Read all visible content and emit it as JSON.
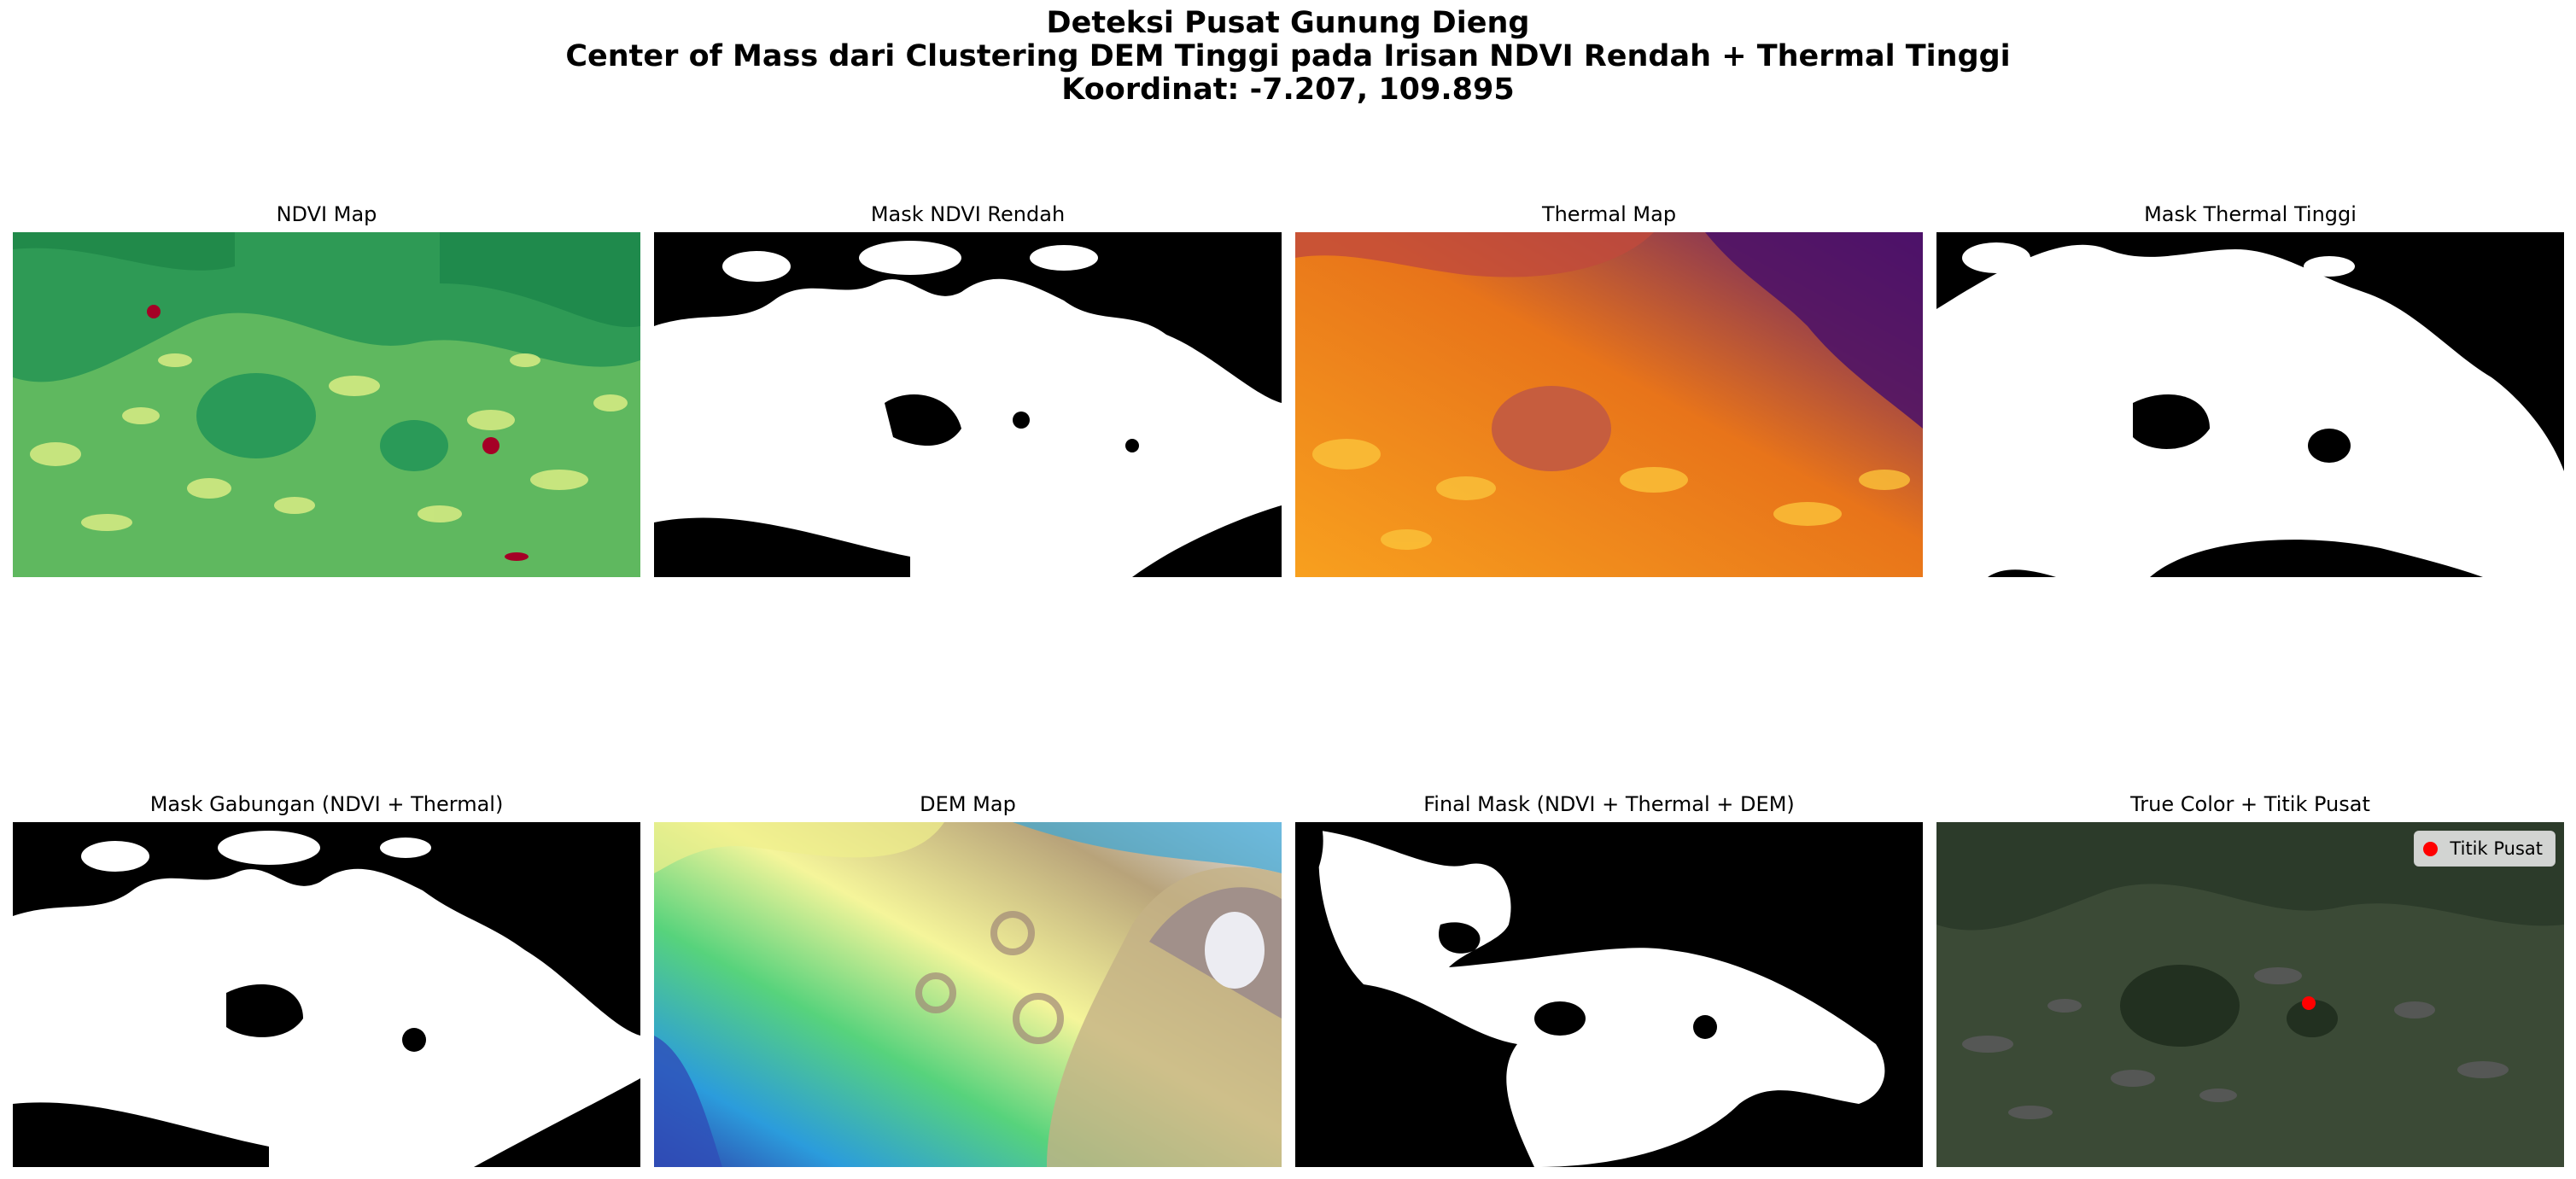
{
  "figure": {
    "title_lines": [
      "Deteksi Pusat Gunung Dieng",
      "Center of Mass dari Clustering DEM Tinggi pada Irisan NDVI Rendah + Thermal Tinggi",
      "Koordinat: -7.207, 109.895"
    ]
  },
  "panels": [
    {
      "title": "NDVI Map",
      "colormap": "RdYlGn"
    },
    {
      "title": "Mask NDVI Rendah",
      "colormap": "gray"
    },
    {
      "title": "Thermal Map",
      "colormap": "inferno"
    },
    {
      "title": "Mask Thermal Tinggi",
      "colormap": "gray"
    },
    {
      "title": "Mask Gabungan (NDVI + Thermal)",
      "colormap": "gray"
    },
    {
      "title": "DEM Map",
      "colormap": "terrain"
    },
    {
      "title": "Final Mask (NDVI + Thermal + DEM)",
      "colormap": "gray"
    },
    {
      "title": "True Color + Titik Pusat",
      "colormap": "rgb"
    }
  ],
  "legend": {
    "label": "Titik Pusat",
    "marker_color": "#ff0000"
  }
}
